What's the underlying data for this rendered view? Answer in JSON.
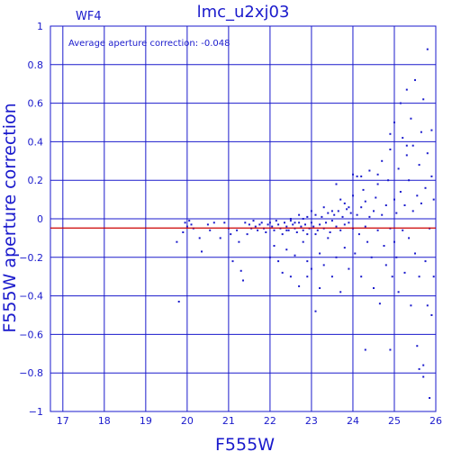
{
  "chart_data": {
    "type": "scatter",
    "title": "lmc_u2xj03",
    "subtitle": "WF4",
    "annotation": "Average aperture correction: -0.048",
    "xlabel": "F555W",
    "ylabel": "F555W aperture correction",
    "xlim": [
      16.7,
      26.0
    ],
    "ylim": [
      -1.0,
      1.0
    ],
    "xticks": [
      17,
      18,
      19,
      20,
      21,
      22,
      23,
      24,
      25,
      26
    ],
    "yticks": [
      -1,
      -0.8,
      -0.6,
      -0.4,
      -0.2,
      0,
      0.2,
      0.4,
      0.6,
      0.8,
      1
    ],
    "xtick_labels": [
      "17",
      "18",
      "19",
      "20",
      "21",
      "22",
      "23",
      "24",
      "25",
      "26"
    ],
    "ytick_labels": [
      "−1",
      "−0.8",
      "−0.6",
      "−0.4",
      "−0.2",
      "0",
      "0.2",
      "0.4",
      "0.6",
      "0.8",
      "1"
    ],
    "grid": true,
    "reference_line": -0.048,
    "colors": {
      "axes": "#1a1acc",
      "points": "#1a1acc",
      "reference_line": "#cc0000",
      "background": "#ffffff"
    },
    "points": [
      [
        19.75,
        -0.12
      ],
      [
        19.8,
        -0.43
      ],
      [
        19.9,
        -0.07
      ],
      [
        19.95,
        -0.02
      ],
      [
        20.0,
        -0.04
      ],
      [
        20.05,
        -0.01
      ],
      [
        20.1,
        -0.03
      ],
      [
        20.15,
        -0.05
      ],
      [
        20.3,
        -0.1
      ],
      [
        20.35,
        -0.17
      ],
      [
        20.5,
        -0.03
      ],
      [
        20.55,
        -0.06
      ],
      [
        20.65,
        -0.02
      ],
      [
        20.8,
        -0.1
      ],
      [
        20.9,
        -0.02
      ],
      [
        21.0,
        -0.05
      ],
      [
        21.05,
        -0.08
      ],
      [
        21.1,
        -0.22
      ],
      [
        21.2,
        -0.06
      ],
      [
        21.25,
        -0.12
      ],
      [
        21.3,
        -0.27
      ],
      [
        21.35,
        -0.32
      ],
      [
        21.4,
        -0.02
      ],
      [
        21.45,
        -0.08
      ],
      [
        21.5,
        -0.03
      ],
      [
        21.55,
        -0.05
      ],
      [
        21.6,
        -0.01
      ],
      [
        21.65,
        -0.04
      ],
      [
        21.7,
        -0.06
      ],
      [
        21.75,
        -0.03
      ],
      [
        21.8,
        -0.02
      ],
      [
        21.85,
        -0.05
      ],
      [
        21.9,
        -0.07
      ],
      [
        21.95,
        -0.03
      ],
      [
        22.0,
        -0.02
      ],
      [
        22.0,
        -0.2
      ],
      [
        22.05,
        -0.04
      ],
      [
        22.1,
        -0.06
      ],
      [
        22.1,
        -0.14
      ],
      [
        22.15,
        -0.01
      ],
      [
        22.2,
        -0.03
      ],
      [
        22.2,
        -0.22
      ],
      [
        22.25,
        -0.05
      ],
      [
        22.3,
        -0.08
      ],
      [
        22.3,
        -0.28
      ],
      [
        22.35,
        -0.02
      ],
      [
        22.4,
        -0.04
      ],
      [
        22.4,
        -0.16
      ],
      [
        22.45,
        -0.06
      ],
      [
        22.5,
        -0.01
      ],
      [
        22.5,
        -0.3
      ],
      [
        22.55,
        -0.03
      ],
      [
        22.6,
        -0.05
      ],
      [
        22.6,
        -0.19
      ],
      [
        22.65,
        -0.07
      ],
      [
        22.7,
        -0.02
      ],
      [
        22.7,
        -0.35
      ],
      [
        22.75,
        -0.04
      ],
      [
        22.8,
        -0.06
      ],
      [
        22.8,
        -0.12
      ],
      [
        22.85,
        -0.03
      ],
      [
        22.9,
        0.01
      ],
      [
        22.9,
        -0.22
      ],
      [
        22.95,
        -0.05
      ],
      [
        23.0,
        -0.02
      ],
      [
        23.0,
        -0.26
      ],
      [
        23.05,
        -0.04
      ],
      [
        23.1,
        0.02
      ],
      [
        23.1,
        -0.08
      ],
      [
        23.15,
        -0.06
      ],
      [
        23.2,
        -0.03
      ],
      [
        23.2,
        -0.18
      ],
      [
        23.25,
        0.01
      ],
      [
        23.3,
        -0.05
      ],
      [
        23.3,
        -0.24
      ],
      [
        23.35,
        -0.02
      ],
      [
        23.4,
        0.03
      ],
      [
        23.4,
        -0.1
      ],
      [
        23.45,
        -0.07
      ],
      [
        23.5,
        -0.01
      ],
      [
        23.5,
        -0.3
      ],
      [
        23.55,
        0.02
      ],
      [
        23.6,
        -0.04
      ],
      [
        23.6,
        -0.2
      ],
      [
        23.65,
        0.04
      ],
      [
        23.7,
        -0.06
      ],
      [
        23.7,
        -0.38
      ],
      [
        23.75,
        0.01
      ],
      [
        23.8,
        -0.03
      ],
      [
        23.8,
        -0.15
      ],
      [
        23.85,
        0.05
      ],
      [
        23.9,
        -0.02
      ],
      [
        23.9,
        -0.26
      ],
      [
        23.95,
        0.03
      ],
      [
        24.0,
        -0.05
      ],
      [
        24.0,
        0.12
      ],
      [
        24.05,
        -0.18
      ],
      [
        24.1,
        0.02
      ],
      [
        24.1,
        0.22
      ],
      [
        24.15,
        -0.08
      ],
      [
        24.2,
        0.06
      ],
      [
        24.2,
        -0.3
      ],
      [
        24.25,
        0.15
      ],
      [
        24.3,
        -0.04
      ],
      [
        24.3,
        0.09
      ],
      [
        24.35,
        -0.12
      ],
      [
        24.4,
        0.01
      ],
      [
        24.4,
        0.25
      ],
      [
        24.45,
        -0.2
      ],
      [
        24.5,
        0.04
      ],
      [
        24.5,
        -0.36
      ],
      [
        24.55,
        0.11
      ],
      [
        24.6,
        -0.06
      ],
      [
        24.6,
        0.18
      ],
      [
        24.65,
        -0.44
      ],
      [
        24.7,
        0.02
      ],
      [
        24.7,
        0.3
      ],
      [
        24.75,
        -0.14
      ],
      [
        24.8,
        0.07
      ],
      [
        24.8,
        -0.24
      ],
      [
        24.85,
        0.2
      ],
      [
        24.9,
        -0.05
      ],
      [
        24.9,
        0.36
      ],
      [
        24.95,
        -0.3
      ],
      [
        25.0,
        0.1
      ],
      [
        25.0,
        -0.12
      ],
      [
        25.0,
        0.5
      ],
      [
        25.05,
        0.03
      ],
      [
        25.05,
        -0.2
      ],
      [
        25.1,
        0.26
      ],
      [
        25.1,
        -0.38
      ],
      [
        25.15,
        0.14
      ],
      [
        25.15,
        0.6
      ],
      [
        25.2,
        -0.06
      ],
      [
        25.2,
        0.42
      ],
      [
        25.25,
        0.07
      ],
      [
        25.25,
        -0.28
      ],
      [
        25.3,
        0.33
      ],
      [
        25.3,
        0.67
      ],
      [
        25.35,
        -0.1
      ],
      [
        25.35,
        0.2
      ],
      [
        25.4,
        0.52
      ],
      [
        25.4,
        -0.45
      ],
      [
        25.45,
        0.04
      ],
      [
        25.45,
        0.38
      ],
      [
        25.5,
        -0.18
      ],
      [
        25.5,
        0.72
      ],
      [
        25.55,
        0.12
      ],
      [
        25.55,
        -0.66
      ],
      [
        25.6,
        0.28
      ],
      [
        25.6,
        -0.3
      ],
      [
        25.65,
        0.45
      ],
      [
        25.65,
        0.08
      ],
      [
        25.7,
        -0.76
      ],
      [
        25.7,
        0.62
      ],
      [
        25.75,
        0.16
      ],
      [
        25.75,
        -0.22
      ],
      [
        25.8,
        0.88
      ],
      [
        25.8,
        0.34
      ],
      [
        25.85,
        -0.05
      ],
      [
        25.85,
        -0.93
      ],
      [
        25.9,
        0.22
      ],
      [
        25.9,
        -0.5
      ],
      [
        25.95,
        0.1
      ],
      [
        25.95,
        -0.3
      ],
      [
        24.0,
        0.23
      ],
      [
        24.2,
        0.22
      ],
      [
        24.6,
        0.23
      ],
      [
        25.3,
        0.38
      ],
      [
        24.9,
        0.44
      ],
      [
        23.6,
        0.18
      ],
      [
        24.3,
        -0.68
      ],
      [
        24.9,
        -0.68
      ],
      [
        25.6,
        -0.78
      ],
      [
        25.7,
        -0.82
      ],
      [
        25.8,
        -0.45
      ],
      [
        25.9,
        0.46
      ],
      [
        23.1,
        -0.48
      ],
      [
        23.2,
        -0.36
      ],
      [
        22.9,
        -0.3
      ],
      [
        23.7,
        0.1
      ],
      [
        23.8,
        0.08
      ],
      [
        22.8,
        0.0
      ],
      [
        22.9,
        -0.08
      ],
      [
        22.6,
        -0.02
      ],
      [
        22.5,
        0.0
      ],
      [
        23.0,
        0.04
      ],
      [
        23.3,
        0.06
      ],
      [
        23.5,
        0.04
      ],
      [
        23.9,
        0.06
      ],
      [
        22.7,
        0.02
      ],
      [
        22.4,
        -0.06
      ]
    ]
  }
}
